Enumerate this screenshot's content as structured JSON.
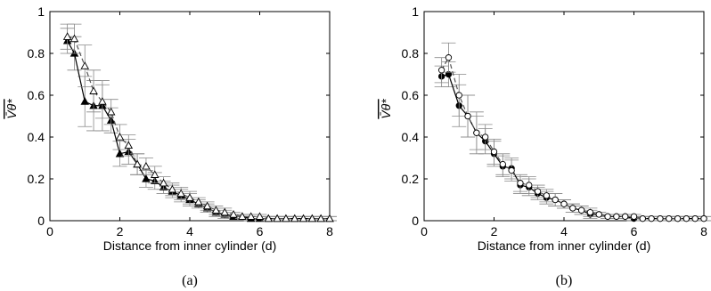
{
  "chart_data": [
    {
      "type": "line",
      "caption": "(a)",
      "xlabel": "Distance from inner cylinder (d)",
      "ylabel": "V̄θ*",
      "xlim": [
        0,
        8
      ],
      "ylim": [
        0,
        1
      ],
      "xticks": [
        "0",
        "2",
        "4",
        "6",
        "8"
      ],
      "yticks": [
        "0",
        "0.2",
        "0.4",
        "0.6",
        "0.8",
        "1"
      ],
      "grid": false,
      "series": [
        {
          "marker": "filled-triangle",
          "line": "solid",
          "x": [
            0.5,
            0.7,
            1.0,
            1.25,
            1.5,
            1.75,
            2.0,
            2.25,
            2.5,
            2.75,
            3.0,
            3.25,
            3.5,
            3.75,
            4.0,
            4.25,
            4.5,
            4.75,
            5.0,
            5.25,
            5.5,
            5.75,
            6.0,
            6.25,
            6.5,
            6.75,
            7.0,
            7.25,
            7.5,
            7.75,
            8.0
          ],
          "y": [
            0.86,
            0.8,
            0.57,
            0.55,
            0.55,
            0.48,
            0.32,
            0.33,
            0.27,
            0.2,
            0.19,
            0.16,
            0.14,
            0.12,
            0.1,
            0.08,
            0.06,
            0.04,
            0.03,
            0.02,
            0.02,
            0.01,
            0.01,
            0.01,
            0.01,
            0.01,
            0.01,
            0.01,
            0.01,
            0.01,
            0.01
          ],
          "err": [
            0.06,
            0.08,
            0.12,
            0.12,
            0.12,
            0.06,
            0.06,
            0.06,
            0.05,
            0.04,
            0.04,
            0.03,
            0.03,
            0.03,
            0.03,
            0.02,
            0.02,
            0.02,
            0.02,
            0.01,
            0.01,
            0.01,
            0.01,
            0.01,
            0.01,
            0.01,
            0.01,
            0.01,
            0.01,
            0.01,
            0.01
          ]
        },
        {
          "marker": "open-triangle",
          "line": "dashed",
          "x": [
            0.5,
            0.7,
            1.0,
            1.25,
            1.5,
            1.75,
            2.0,
            2.25,
            2.5,
            2.75,
            3.0,
            3.25,
            3.5,
            3.75,
            4.0,
            4.25,
            4.5,
            4.75,
            5.0,
            5.25,
            5.5,
            5.75,
            6.0,
            6.25,
            6.5,
            6.75,
            7.0,
            7.25,
            7.5,
            7.75,
            8.0
          ],
          "y": [
            0.88,
            0.87,
            0.74,
            0.62,
            0.57,
            0.52,
            0.4,
            0.36,
            0.27,
            0.26,
            0.22,
            0.18,
            0.15,
            0.13,
            0.11,
            0.09,
            0.07,
            0.05,
            0.04,
            0.03,
            0.02,
            0.02,
            0.02,
            0.01,
            0.01,
            0.01,
            0.01,
            0.01,
            0.01,
            0.01,
            0.01
          ],
          "err": [
            0.06,
            0.07,
            0.1,
            0.1,
            0.08,
            0.06,
            0.06,
            0.05,
            0.05,
            0.04,
            0.04,
            0.03,
            0.03,
            0.03,
            0.03,
            0.02,
            0.02,
            0.02,
            0.02,
            0.01,
            0.01,
            0.01,
            0.01,
            0.01,
            0.01,
            0.01,
            0.01,
            0.01,
            0.01,
            0.01,
            0.01
          ]
        }
      ]
    },
    {
      "type": "line",
      "caption": "(b)",
      "xlabel": "Distance from inner cylinder (d)",
      "ylabel": "V̄θ*",
      "xlim": [
        0,
        8
      ],
      "ylim": [
        0,
        1
      ],
      "xticks": [
        "0",
        "2",
        "4",
        "6",
        "8"
      ],
      "yticks": [
        "0",
        "0.2",
        "0.4",
        "0.6",
        "0.8",
        "1"
      ],
      "grid": false,
      "series": [
        {
          "marker": "filled-circle",
          "line": "solid",
          "x": [
            0.5,
            0.7,
            1.0,
            1.25,
            1.5,
            1.75,
            2.0,
            2.25,
            2.5,
            2.75,
            3.0,
            3.25,
            3.5,
            3.75,
            4.0,
            4.25,
            4.5,
            4.75,
            5.0,
            5.25,
            5.5,
            5.75,
            6.0,
            6.25,
            6.5,
            6.75,
            7.0,
            7.25,
            7.5,
            7.75,
            8.0
          ],
          "y": [
            0.69,
            0.7,
            0.55,
            0.5,
            0.42,
            0.38,
            0.32,
            0.26,
            0.25,
            0.17,
            0.16,
            0.13,
            0.11,
            0.1,
            0.08,
            0.06,
            0.05,
            0.03,
            0.03,
            0.02,
            0.02,
            0.02,
            0.01,
            0.01,
            0.01,
            0.01,
            0.01,
            0.01,
            0.01,
            0.01,
            0.01
          ],
          "err": [
            0.05,
            0.06,
            0.1,
            0.1,
            0.1,
            0.06,
            0.06,
            0.05,
            0.05,
            0.04,
            0.04,
            0.03,
            0.03,
            0.03,
            0.02,
            0.02,
            0.02,
            0.02,
            0.01,
            0.01,
            0.01,
            0.01,
            0.01,
            0.01,
            0.01,
            0.01,
            0.01,
            0.01,
            0.01,
            0.01,
            0.01
          ]
        },
        {
          "marker": "open-circle",
          "line": "dashed",
          "x": [
            0.5,
            0.7,
            1.0,
            1.25,
            1.5,
            1.75,
            2.0,
            2.25,
            2.5,
            2.75,
            3.0,
            3.25,
            3.5,
            3.75,
            4.0,
            4.25,
            4.5,
            4.75,
            5.0,
            5.25,
            5.5,
            5.75,
            6.0,
            6.25,
            6.5,
            6.75,
            7.0,
            7.25,
            7.5,
            7.75,
            8.0
          ],
          "y": [
            0.72,
            0.78,
            0.6,
            0.5,
            0.42,
            0.4,
            0.33,
            0.27,
            0.24,
            0.18,
            0.17,
            0.14,
            0.12,
            0.1,
            0.08,
            0.06,
            0.05,
            0.04,
            0.03,
            0.02,
            0.02,
            0.02,
            0.02,
            0.01,
            0.01,
            0.01,
            0.01,
            0.01,
            0.01,
            0.01,
            0.01
          ],
          "err": [
            0.06,
            0.07,
            0.1,
            0.1,
            0.08,
            0.06,
            0.06,
            0.05,
            0.05,
            0.04,
            0.04,
            0.03,
            0.03,
            0.03,
            0.02,
            0.02,
            0.02,
            0.02,
            0.01,
            0.01,
            0.01,
            0.01,
            0.01,
            0.01,
            0.01,
            0.01,
            0.01,
            0.01,
            0.01,
            0.01,
            0.01
          ]
        }
      ]
    }
  ]
}
